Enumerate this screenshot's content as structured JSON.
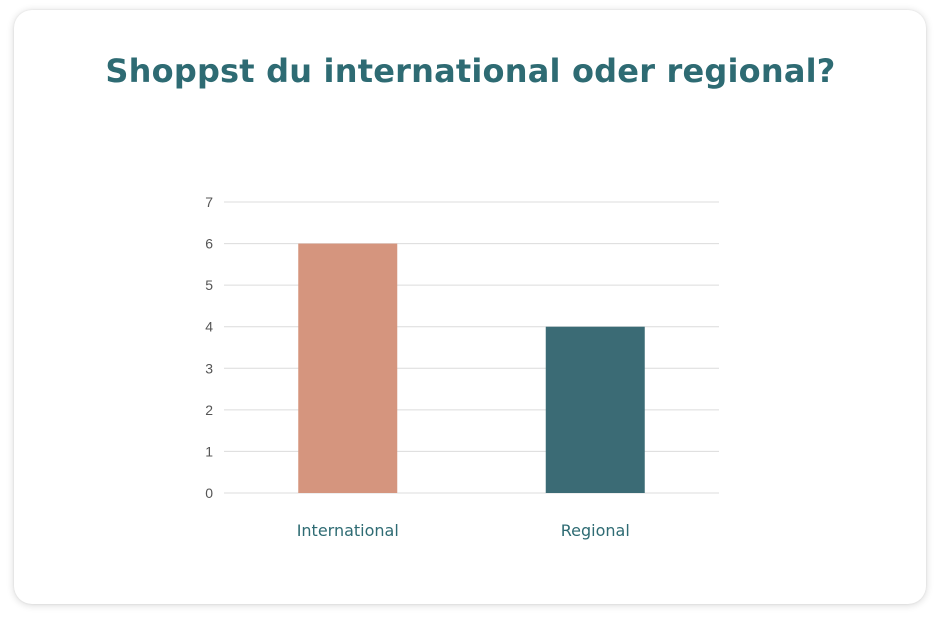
{
  "chart_data": {
    "type": "bar",
    "title": "Shoppst du international oder regional?",
    "xlabel": "",
    "ylabel": "",
    "categories": [
      "International",
      "Regional"
    ],
    "values": [
      6,
      4
    ],
    "bar_colors": [
      "#d5957e",
      "#3b6b75"
    ],
    "ylim": [
      0,
      7
    ],
    "yticks": [
      "0",
      "1",
      "2",
      "3",
      "4",
      "5",
      "6",
      "7"
    ],
    "grid": true,
    "legend": "none"
  },
  "colors": {
    "title": "#2e6b73",
    "gridline": "#dcdcdc",
    "category_label": "#2e6b73"
  }
}
